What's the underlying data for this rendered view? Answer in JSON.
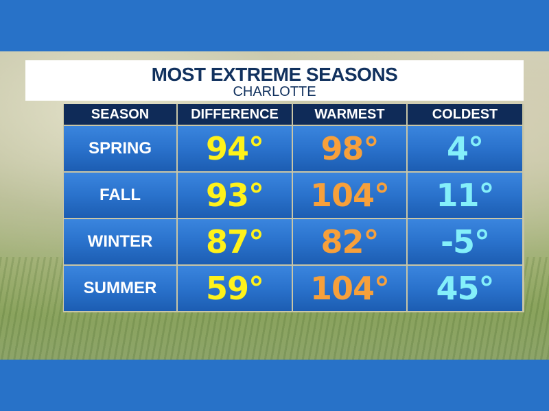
{
  "title": "MOST EXTREME SEASONS",
  "subtitle": "CHARLOTTE",
  "colors": {
    "band": "#2872c8",
    "header_bg": "#0f2b58",
    "cell_bg": "#2a72cc",
    "difference": "#fff21a",
    "warmest": "#f7a03b",
    "coldest": "#84effa"
  },
  "table": {
    "headers": [
      "SEASON",
      "DIFFERENCE",
      "WARMEST",
      "COLDEST"
    ],
    "rows": [
      {
        "season": "SPRING",
        "difference": "94°",
        "warmest": "98°",
        "coldest": "4°"
      },
      {
        "season": "FALL",
        "difference": "93°",
        "warmest": "104°",
        "coldest": "11°"
      },
      {
        "season": "WINTER",
        "difference": "87°",
        "warmest": "82°",
        "coldest": "-5°"
      },
      {
        "season": "SUMMER",
        "difference": "59°",
        "warmest": "104°",
        "coldest": "45°"
      }
    ]
  },
  "chart_data": {
    "type": "table",
    "title": "MOST EXTREME SEASONS",
    "subtitle": "CHARLOTTE",
    "columns": [
      "SEASON",
      "DIFFERENCE",
      "WARMEST",
      "COLDEST"
    ],
    "categories": [
      "SPRING",
      "FALL",
      "WINTER",
      "SUMMER"
    ],
    "series": [
      {
        "name": "DIFFERENCE",
        "values": [
          94,
          93,
          87,
          59
        ]
      },
      {
        "name": "WARMEST",
        "values": [
          98,
          104,
          82,
          104
        ]
      },
      {
        "name": "COLDEST",
        "values": [
          4,
          11,
          -5,
          45
        ]
      }
    ],
    "unit": "°"
  }
}
